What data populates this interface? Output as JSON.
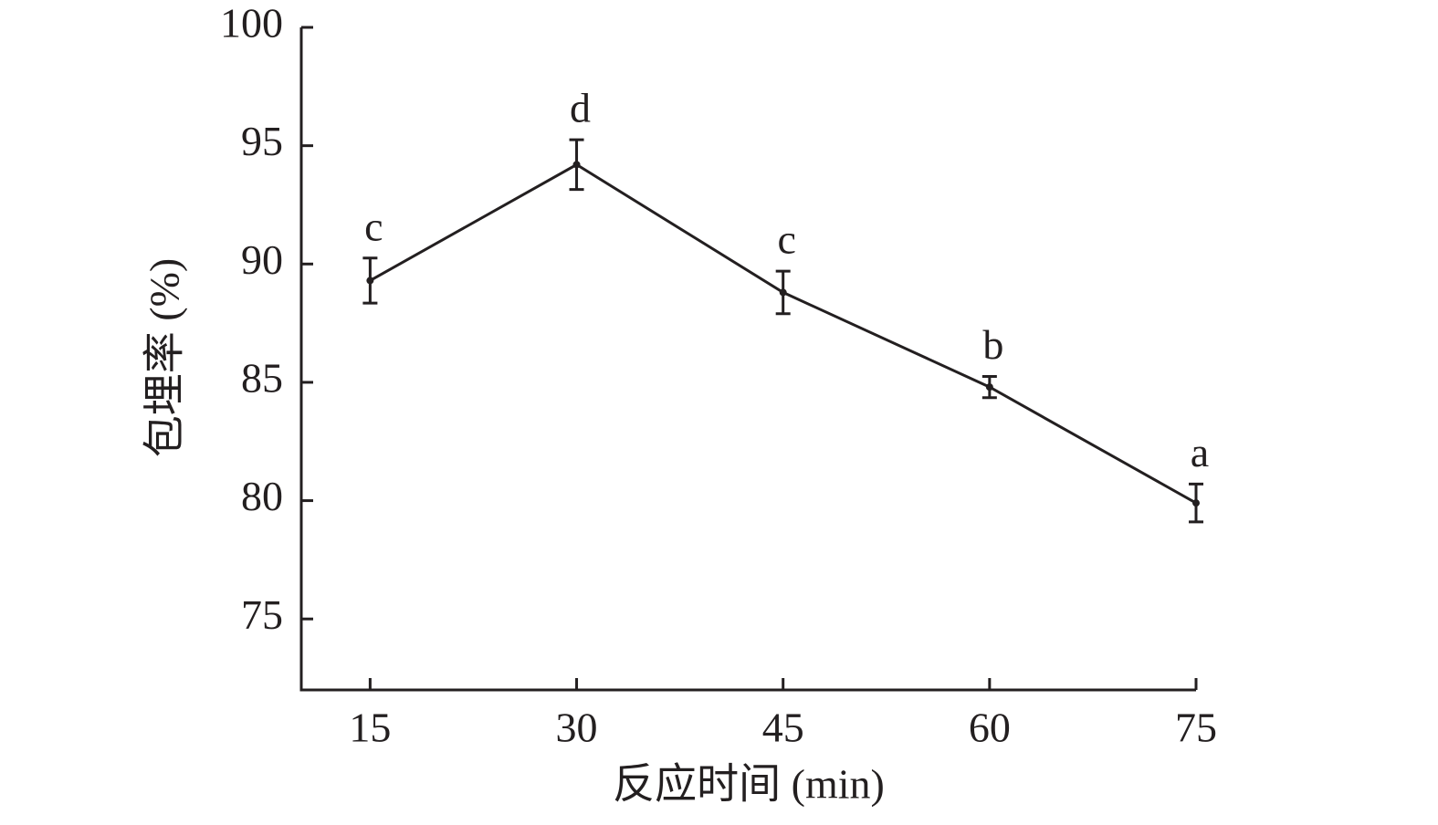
{
  "chart_data": {
    "type": "line",
    "x_label": "反应时间 (min)",
    "y_label": "包埋率 (%)",
    "x": [
      15,
      30,
      45,
      60,
      75
    ],
    "series": [
      {
        "color": "#231f20",
        "values": [
          89.3,
          94.2,
          88.8,
          84.8,
          79.9
        ],
        "errors": [
          0.95,
          1.05,
          0.9,
          0.45,
          0.8
        ],
        "annotations": [
          "c",
          "d",
          "c",
          "b",
          "a"
        ]
      }
    ],
    "xlim": [
      10,
      75
    ],
    "xticks": [
      15,
      30,
      45,
      60,
      75
    ],
    "ylim": [
      72,
      100
    ],
    "yticks": [
      75,
      80,
      85,
      90,
      95,
      100
    ]
  }
}
